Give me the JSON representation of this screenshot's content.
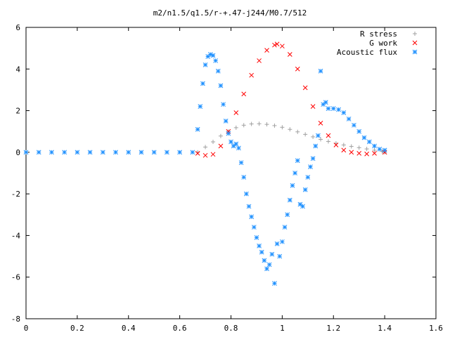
{
  "chart_data": {
    "type": "scatter",
    "title": "m2/n1.5/q1.5/r-+.47-j244/M0.7/512",
    "xlabel": "",
    "ylabel": "",
    "xlim": [
      0,
      1.6
    ],
    "ylim": [
      -8,
      6
    ],
    "xticks": [
      "0",
      "0.2",
      "0.4",
      "0.6",
      "0.8",
      "1",
      "1.2",
      "1.4",
      "1.6"
    ],
    "yticks": [
      "-8",
      "-6",
      "-4",
      "-2",
      "0",
      "2",
      "4",
      "6"
    ],
    "grid": false,
    "legend_position": "top-right",
    "series": [
      {
        "name": "R stress",
        "marker": "+",
        "color": "#a0a0a0",
        "x": [
          0.67,
          0.7,
          0.73,
          0.76,
          0.79,
          0.82,
          0.85,
          0.88,
          0.91,
          0.94,
          0.97,
          1.0,
          1.03,
          1.06,
          1.09,
          1.12,
          1.15,
          1.18,
          1.21,
          1.24,
          1.27,
          1.3,
          1.33,
          1.36,
          1.39,
          1.4
        ],
        "y": [
          0.0,
          0.25,
          0.5,
          0.78,
          1.0,
          1.18,
          1.3,
          1.36,
          1.37,
          1.34,
          1.28,
          1.2,
          1.1,
          0.98,
          0.86,
          0.74,
          0.62,
          0.52,
          0.43,
          0.35,
          0.28,
          0.22,
          0.16,
          0.1,
          0.04,
          0.0
        ]
      },
      {
        "name": "G work",
        "marker": "x",
        "color": "#ff0000",
        "x": [
          0.67,
          0.7,
          0.73,
          0.76,
          0.79,
          0.82,
          0.85,
          0.88,
          0.91,
          0.94,
          0.97,
          0.98,
          1.0,
          1.03,
          1.06,
          1.09,
          1.12,
          1.15,
          1.18,
          1.21,
          1.24,
          1.27,
          1.3,
          1.33,
          1.36,
          1.4
        ],
        "y": [
          -0.05,
          -0.15,
          -0.1,
          0.3,
          1.0,
          1.9,
          2.8,
          3.7,
          4.4,
          4.9,
          5.15,
          5.2,
          5.1,
          4.7,
          4.0,
          3.1,
          2.2,
          1.4,
          0.8,
          0.35,
          0.1,
          0.0,
          -0.05,
          -0.08,
          -0.05,
          0.0
        ]
      },
      {
        "name": "Acoustic flux",
        "marker": "*",
        "color": "#1e90ff",
        "x": [
          0.0,
          0.05,
          0.1,
          0.15,
          0.2,
          0.25,
          0.3,
          0.35,
          0.4,
          0.45,
          0.5,
          0.55,
          0.6,
          0.65,
          0.67,
          0.68,
          0.69,
          0.7,
          0.71,
          0.72,
          0.73,
          0.74,
          0.75,
          0.76,
          0.77,
          0.78,
          0.79,
          0.8,
          0.81,
          0.82,
          0.83,
          0.84,
          0.85,
          0.86,
          0.87,
          0.88,
          0.89,
          0.9,
          0.91,
          0.92,
          0.93,
          0.94,
          0.95,
          0.96,
          0.97,
          0.98,
          0.99,
          1.0,
          1.01,
          1.02,
          1.03,
          1.04,
          1.05,
          1.06,
          1.07,
          1.08,
          1.09,
          1.1,
          1.11,
          1.12,
          1.13,
          1.14,
          1.15,
          1.16,
          1.17,
          1.18,
          1.2,
          1.22,
          1.24,
          1.26,
          1.28,
          1.3,
          1.32,
          1.34,
          1.36,
          1.38,
          1.4
        ],
        "y": [
          0.0,
          0.0,
          0.0,
          0.0,
          0.0,
          0.0,
          0.0,
          0.0,
          0.0,
          0.0,
          0.0,
          0.0,
          0.0,
          0.0,
          1.1,
          2.2,
          3.3,
          4.2,
          4.6,
          4.7,
          4.65,
          4.4,
          3.9,
          3.2,
          2.3,
          1.5,
          0.9,
          0.5,
          0.3,
          0.4,
          0.2,
          -0.5,
          -1.2,
          -2.0,
          -2.6,
          -3.1,
          -3.6,
          -4.1,
          -4.5,
          -4.8,
          -5.2,
          -5.6,
          -5.4,
          -4.9,
          -6.3,
          -4.4,
          -5.0,
          -4.3,
          -3.6,
          -3.0,
          -2.3,
          -1.6,
          -1.0,
          -0.4,
          -2.5,
          -2.6,
          -1.8,
          -1.2,
          -0.7,
          -0.3,
          0.3,
          0.8,
          3.9,
          2.3,
          2.4,
          2.1,
          2.1,
          2.05,
          1.9,
          1.6,
          1.3,
          1.0,
          0.7,
          0.5,
          0.3,
          0.15,
          0.1
        ]
      }
    ]
  }
}
